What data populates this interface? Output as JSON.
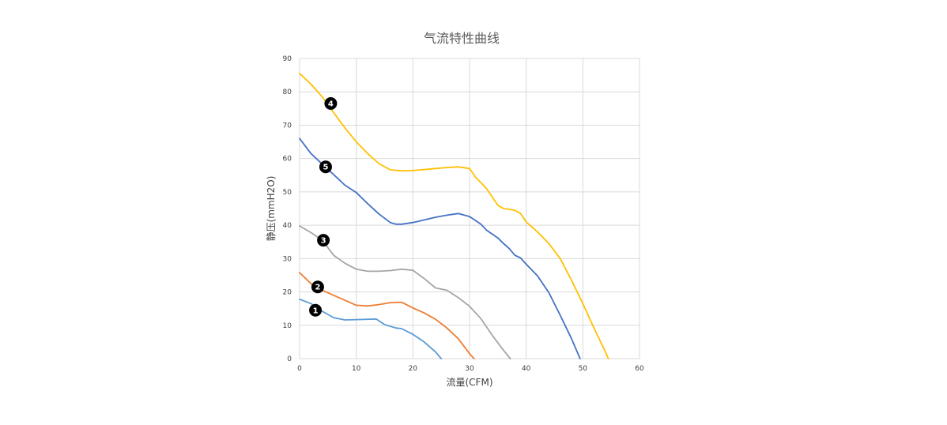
{
  "chart_data": {
    "type": "line",
    "title": "气流特性曲线",
    "xlabel": "流量(CFM)",
    "ylabel": "静压(mmH2O)",
    "xlim": [
      0,
      60
    ],
    "ylim": [
      0,
      90
    ],
    "xticks": [
      0,
      10,
      20,
      30,
      40,
      50,
      60
    ],
    "yticks": [
      0,
      10,
      20,
      30,
      40,
      50,
      60,
      70,
      80,
      90
    ],
    "grid": true,
    "legend": "none",
    "series": [
      {
        "name": "1",
        "color": "#5b9bd5",
        "label_at": [
          2.8,
          14.5
        ],
        "points": [
          [
            0,
            17.8
          ],
          [
            2,
            16.5
          ],
          [
            4,
            14.2
          ],
          [
            6,
            12.3
          ],
          [
            8,
            11.6
          ],
          [
            10,
            11.7
          ],
          [
            12,
            11.8
          ],
          [
            13.5,
            11.9
          ],
          [
            15,
            10.2
          ],
          [
            17,
            9.2
          ],
          [
            18,
            9.0
          ],
          [
            20,
            7.3
          ],
          [
            22,
            5
          ],
          [
            24,
            2
          ],
          [
            25,
            0
          ]
        ]
      },
      {
        "name": "2",
        "color": "#ed7d31",
        "label_at": [
          3.2,
          21.5
        ],
        "points": [
          [
            0,
            25.8
          ],
          [
            2,
            22.5
          ],
          [
            4,
            20.5
          ],
          [
            6,
            19
          ],
          [
            8,
            17.5
          ],
          [
            10,
            16
          ],
          [
            12,
            15.8
          ],
          [
            14,
            16.2
          ],
          [
            16,
            16.8
          ],
          [
            18,
            16.9
          ],
          [
            20,
            15.2
          ],
          [
            22,
            13.7
          ],
          [
            24,
            11.8
          ],
          [
            26,
            9.2
          ],
          [
            28,
            6
          ],
          [
            30,
            1.5
          ],
          [
            30.8,
            0
          ]
        ]
      },
      {
        "name": "3",
        "color": "#a5a5a5",
        "label_at": [
          4.2,
          35.5
        ],
        "points": [
          [
            0,
            39.8
          ],
          [
            2,
            37.8
          ],
          [
            4,
            35.5
          ],
          [
            6,
            31
          ],
          [
            8,
            28.6
          ],
          [
            10,
            26.8
          ],
          [
            12,
            26.2
          ],
          [
            14,
            26.2
          ],
          [
            16,
            26.4
          ],
          [
            18,
            26.8
          ],
          [
            20,
            26.5
          ],
          [
            22,
            24
          ],
          [
            24,
            21.2
          ],
          [
            26,
            20.5
          ],
          [
            28,
            18.3
          ],
          [
            30,
            15.7
          ],
          [
            32,
            12
          ],
          [
            34,
            7
          ],
          [
            36,
            2.5
          ],
          [
            37.2,
            0
          ]
        ]
      },
      {
        "name": "4",
        "color": "#ffc000",
        "label_at": [
          5.5,
          76.5
        ],
        "points": [
          [
            0,
            85.5
          ],
          [
            2,
            82.3
          ],
          [
            4,
            78.5
          ],
          [
            6,
            73.8
          ],
          [
            8,
            69.2
          ],
          [
            10,
            65
          ],
          [
            12,
            61.5
          ],
          [
            14,
            58.5
          ],
          [
            16,
            56.6
          ],
          [
            18,
            56.3
          ],
          [
            20,
            56.4
          ],
          [
            22,
            56.7
          ],
          [
            24,
            57
          ],
          [
            26,
            57.3
          ],
          [
            28,
            57.5
          ],
          [
            30,
            57
          ],
          [
            31,
            54.5
          ],
          [
            33,
            51
          ],
          [
            35,
            46
          ],
          [
            36,
            45
          ],
          [
            38,
            44.5
          ],
          [
            39,
            43.5
          ],
          [
            40,
            41
          ],
          [
            42,
            38
          ],
          [
            44,
            34.5
          ],
          [
            46,
            30
          ],
          [
            48,
            23.5
          ],
          [
            50,
            16.5
          ],
          [
            52,
            9
          ],
          [
            54,
            2
          ],
          [
            54.5,
            0
          ]
        ]
      },
      {
        "name": "5",
        "color": "#4472c4",
        "label_at": [
          4.6,
          57.5
        ],
        "points": [
          [
            0,
            66
          ],
          [
            2,
            61.5
          ],
          [
            4,
            58.3
          ],
          [
            6,
            55.2
          ],
          [
            8,
            52
          ],
          [
            10,
            49.8
          ],
          [
            12,
            46.5
          ],
          [
            14,
            43.4
          ],
          [
            16,
            40.8
          ],
          [
            17,
            40.3
          ],
          [
            18,
            40.3
          ],
          [
            20,
            40.8
          ],
          [
            22,
            41.6
          ],
          [
            24,
            42.4
          ],
          [
            26,
            43
          ],
          [
            28,
            43.5
          ],
          [
            30,
            42.6
          ],
          [
            32,
            40.3
          ],
          [
            33,
            38.5
          ],
          [
            35,
            36.2
          ],
          [
            36,
            34.5
          ],
          [
            37,
            33
          ],
          [
            38,
            31
          ],
          [
            39,
            30.2
          ],
          [
            40,
            28.3
          ],
          [
            42,
            24.8
          ],
          [
            44,
            19.8
          ],
          [
            46,
            13
          ],
          [
            48,
            6
          ],
          [
            49.5,
            0
          ]
        ]
      }
    ]
  }
}
